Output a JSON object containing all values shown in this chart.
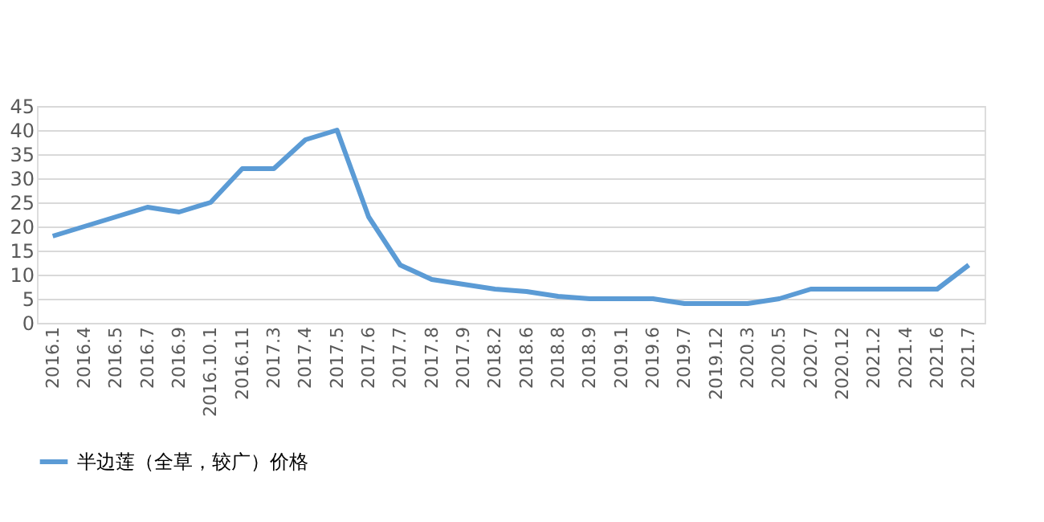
{
  "chart_data": {
    "type": "line",
    "categories": [
      "2016.1",
      "2016.4",
      "2016.5",
      "2016.7",
      "2016.9",
      "2016.10.1",
      "2016.11",
      "2017.3",
      "2017.4",
      "2017.5",
      "2017.6",
      "2017.7",
      "2017.8",
      "2017.9",
      "2018.2",
      "2018.6",
      "2018.8",
      "2018.9",
      "2019.1",
      "2019.6",
      "2019.7",
      "2019.12",
      "2020.3",
      "2020.5",
      "2020.7",
      "2020.12",
      "2021.2",
      "2021.4",
      "2021.6",
      "2021.7"
    ],
    "series": [
      {
        "name": "半边莲（全草，较广）价格",
        "color": "#5b9bd5",
        "values": [
          18,
          20,
          22,
          24,
          23,
          25,
          32,
          32,
          38,
          40,
          22,
          12,
          9,
          8,
          7,
          6.5,
          5.5,
          5,
          5,
          5,
          4,
          4,
          4,
          5,
          7,
          7,
          7,
          7,
          7,
          12
        ]
      }
    ],
    "ylim": [
      0,
      45
    ],
    "yticks": [
      0,
      5,
      10,
      15,
      20,
      25,
      30,
      35,
      40,
      45
    ],
    "grid": "y",
    "legend": "bottom",
    "marker": "none",
    "line_style": "solid"
  }
}
